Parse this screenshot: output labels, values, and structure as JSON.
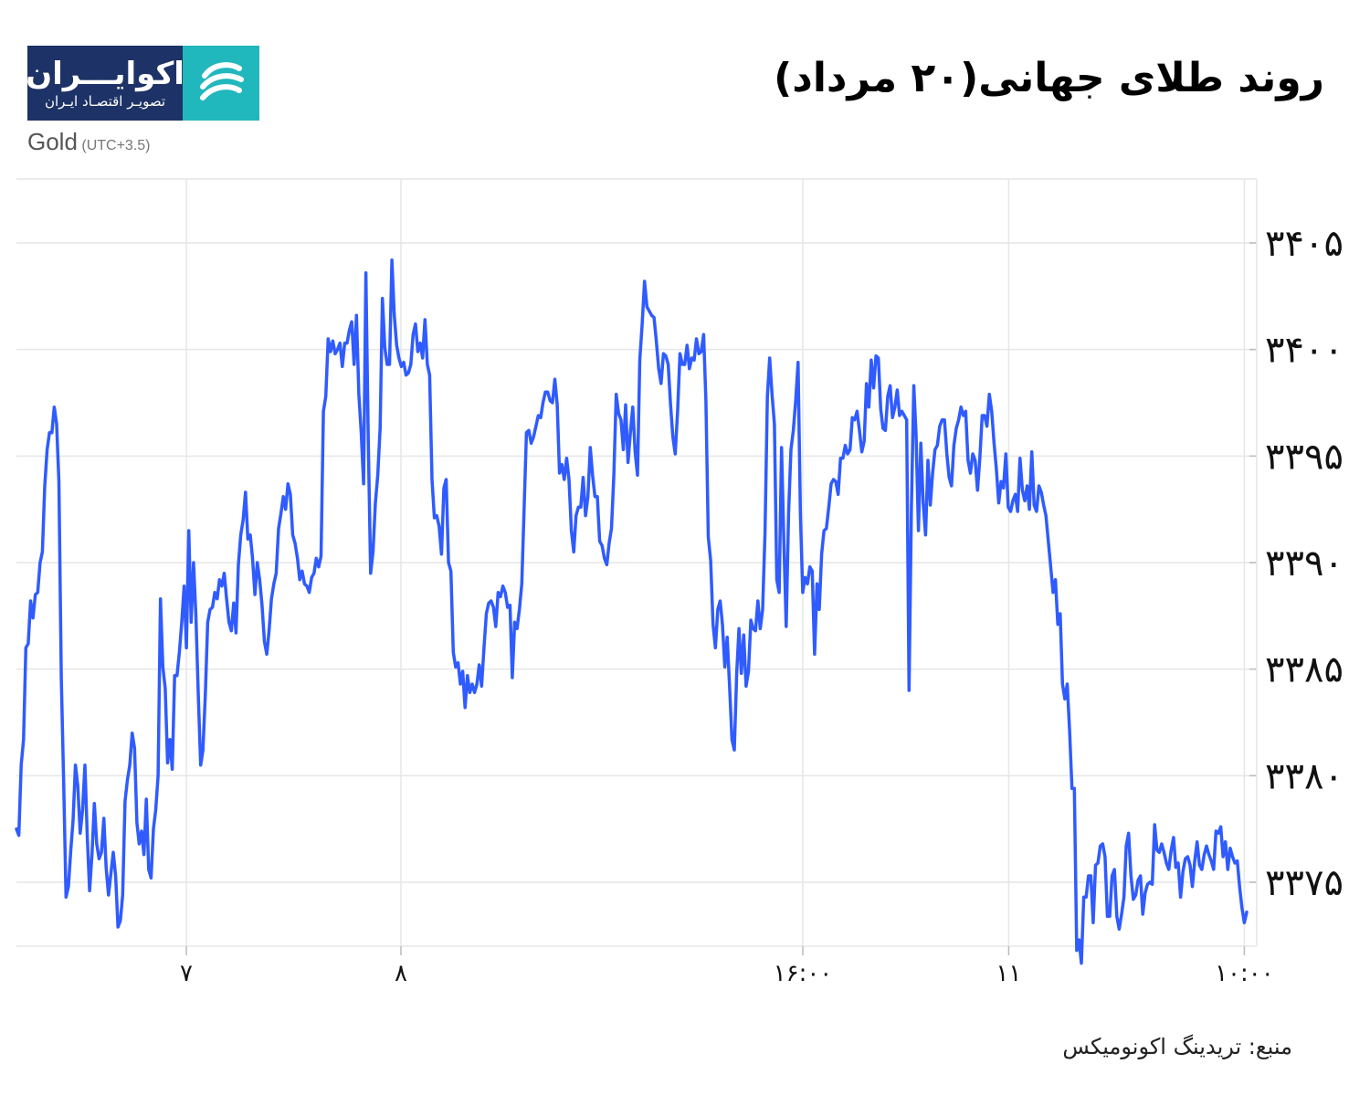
{
  "header": {
    "title": "روند طلای جهانی(۲۰ مرداد)",
    "symbol": "Gold",
    "timezone": "(UTC+3.5)"
  },
  "logo": {
    "name": "اکوایـــران",
    "tagline": "تصویـر اقتصـاد ایـران",
    "colors": {
      "navy": "#1d3266",
      "teal": "#20b7bd"
    }
  },
  "footer": {
    "source": "منبع: تریدینگ اکونومیکس"
  },
  "colors": {
    "line": "#2f5bff",
    "grid": "#e6e6e6"
  },
  "chart_data": {
    "type": "line",
    "series": [
      {
        "values": [
          3377.5,
          3377.2,
          3380.5,
          3381.7,
          3386,
          3386.2,
          3388.2,
          3387.4,
          3388.5,
          3388.6,
          3390,
          3390.5,
          3393.6,
          3395.3,
          3396.1,
          3396.1,
          3397.3,
          3396.5,
          3393.8,
          3384.6,
          3379.7,
          3374.3,
          3374.8,
          3376.5,
          3377.9,
          3380.5,
          3379.5,
          3377.3,
          3378.4,
          3380.5,
          3377.1,
          3374.6,
          3376.3,
          3378.7,
          3376.8,
          3376.1,
          3376.4,
          3378,
          3375.7,
          3374.4,
          3375.4,
          3376.4,
          3375.3,
          3372.9,
          3373.2,
          3374.4,
          3378.8,
          3379.8,
          3380.5,
          3382,
          3381.3,
          3377.8,
          3376.8,
          3377.4,
          3376.3,
          3378.9,
          3375.6,
          3375.2,
          3377.5,
          3378.4,
          3380,
          3388.3,
          3385.1,
          3384.1,
          3380.6,
          3381.7,
          3380.3,
          3384.7,
          3384.7,
          3385.8,
          3387.2,
          3388.9,
          3386,
          3391.5,
          3387.2,
          3390,
          3387.5,
          3383.8,
          3380.5,
          3381.2,
          3383.8,
          3387.2,
          3387.8,
          3387.9,
          3388.6,
          3388.3,
          3389.2,
          3388.9,
          3389.5,
          3388.3,
          3387.2,
          3386.8,
          3388.1,
          3386.7,
          3389.9,
          3391.3,
          3392,
          3393.3,
          3391.1,
          3391.3,
          3390.2,
          3388.5,
          3390,
          3389.2,
          3388,
          3386.3,
          3385.7,
          3386.8,
          3388.3,
          3389,
          3389.5,
          3391.6,
          3392.3,
          3393.1,
          3392.5,
          3393.7,
          3393.2,
          3391.3,
          3390.9,
          3390.2,
          3389.2,
          3389.6,
          3389,
          3388.9,
          3388.6,
          3389.3,
          3389.5,
          3390.2,
          3389.8,
          3390.3,
          3397.1,
          3397.8,
          3400.5,
          3399.9,
          3400.4,
          3399.8,
          3400,
          3400.3,
          3399.2,
          3400.3,
          3400.3,
          3400.9,
          3401.3,
          3399.3,
          3401.6,
          3397.9,
          3396.1,
          3393.7,
          3403.6,
          3395.8,
          3389.5,
          3390.5,
          3392.8,
          3394.1,
          3396.3,
          3402.4,
          3400.1,
          3399.3,
          3399.3,
          3404.2,
          3401.6,
          3400.2,
          3399.6,
          3399.2,
          3399.4,
          3398.8,
          3398.9,
          3399.3,
          3400.7,
          3401.2,
          3399.9,
          3400.3,
          3399.6,
          3401.4,
          3399.3,
          3398.8,
          3393.9,
          3392.1,
          3392.2,
          3391.7,
          3390.4,
          3393.5,
          3393.9,
          3390,
          3389.6,
          3385.8,
          3385.1,
          3385.3,
          3384.3,
          3384.9,
          3383.2,
          3384.7,
          3383.9,
          3384.3,
          3383.9,
          3384.3,
          3385.2,
          3384.2,
          3386,
          3387.6,
          3388.1,
          3388.2,
          3387.9,
          3387,
          3388.6,
          3388.4,
          3388.9,
          3388.6,
          3387.9,
          3388,
          3384.6,
          3387.2,
          3386.9,
          3387.8,
          3389,
          3392.6,
          3396.1,
          3396.2,
          3395.6,
          3395.9,
          3396.4,
          3396.9,
          3396.8,
          3397.5,
          3398,
          3398,
          3397.6,
          3397.5,
          3398.6,
          3397.4,
          3394.2,
          3394.6,
          3393.9,
          3394.9,
          3393.9,
          3391.5,
          3390.5,
          3392.2,
          3392.6,
          3392.6,
          3394,
          3392.2,
          3393.1,
          3395.4,
          3394.1,
          3393.1,
          3393.1,
          3391,
          3390.8,
          3390.2,
          3389.9,
          3390.9,
          3391.6,
          3394.1,
          3397.9,
          3397,
          3396.7,
          3395.3,
          3397.4,
          3394.7,
          3396.1,
          3397.3,
          3395.2,
          3394.1,
          3399.5,
          3401.2,
          3403.2,
          3402,
          3401.8,
          3401.6,
          3401.5,
          3400.4,
          3399.1,
          3398.4,
          3399.8,
          3399.7,
          3399.3,
          3397.4,
          3395.9,
          3395.1,
          3397.1,
          3399.8,
          3399.3,
          3399.3,
          3400.2,
          3399.1,
          3399.6,
          3399.5,
          3400.5,
          3399.8,
          3399.9,
          3400.7,
          3397.6,
          3391.2,
          3390.1,
          3387.1,
          3386,
          3387.8,
          3388.2,
          3387.1,
          3385.1,
          3386.5,
          3384.2,
          3381.7,
          3381.2,
          3384.8,
          3386.9,
          3384.8,
          3386.6,
          3384.2,
          3384.9,
          3387.3,
          3386.9,
          3386.8,
          3388.2,
          3386.9,
          3387.8,
          3391.4,
          3397.8,
          3399.6,
          3397.9,
          3396.5,
          3389.2,
          3388.6,
          3395.4,
          3390.9,
          3387,
          3392.3,
          3395.3,
          3396.2,
          3397.6,
          3399.4,
          3392.2,
          3388.6,
          3389.3,
          3389,
          3389.8,
          3389.6,
          3385.7,
          3389,
          3387.8,
          3390.4,
          3391.5,
          3391.6,
          3392.6,
          3393.7,
          3393.9,
          3393.8,
          3393.2,
          3394.9,
          3394.9,
          3395.5,
          3395.1,
          3395.3,
          3396.8,
          3396.7,
          3397.1,
          3396.2,
          3395.2,
          3395.7,
          3398.4,
          3397.3,
          3399.5,
          3398.2,
          3399.7,
          3399.6,
          3397.2,
          3396.3,
          3396.2,
          3397.8,
          3398.3,
          3396.8,
          3397.3,
          3398.1,
          3396.9,
          3397.1,
          3396.9,
          3396.7,
          3384,
          3392.6,
          3398.3,
          3396,
          3391.5,
          3395.6,
          3392.8,
          3391.3,
          3394.8,
          3392.7,
          3394.2,
          3395.3,
          3395.5,
          3396.4,
          3396.7,
          3396.7,
          3395.1,
          3394,
          3393.6,
          3395.5,
          3396.3,
          3396.7,
          3397.3,
          3396.9,
          3397.1,
          3394.8,
          3394.2,
          3395.1,
          3394.8,
          3393.4,
          3394.9,
          3396.9,
          3396.9,
          3396.4,
          3397.9,
          3397.1,
          3395.6,
          3394.4,
          3392.8,
          3393.8,
          3393.5,
          3395.1,
          3392.6,
          3392.4,
          3392.9,
          3393.2,
          3392.4,
          3394.9,
          3393.4,
          3392.9,
          3393.6,
          3392.5,
          3395.2,
          3392.7,
          3392.4,
          3393.6,
          3393.3,
          3392.7,
          3392.2,
          3391,
          3389.8,
          3388.6,
          3389.2,
          3387.1,
          3387.6,
          3384.3,
          3383.6,
          3384.3,
          3382.1,
          3379.4,
          3379.4,
          3371.8,
          3372.3,
          3371.2,
          3374.3,
          3374.3,
          3375.3,
          3375.3,
          3373.1,
          3375.8,
          3375.9,
          3376.7,
          3376.8,
          3376.2,
          3373.4,
          3373.4,
          3375.3,
          3375.6,
          3373.4,
          3372.8,
          3373.5,
          3374.3,
          3376.7,
          3377.3,
          3375.3,
          3374.2,
          3374.4,
          3375.1,
          3375.3,
          3373.5,
          3374.5,
          3374.9,
          3375,
          3374.9,
          3377.7,
          3376.5,
          3376.4,
          3376.8,
          3376.4,
          3375.9,
          3375.6,
          3376.5,
          3377.1,
          3375.7,
          3375.9,
          3374.3,
          3375.5,
          3376.1,
          3376.2,
          3375.8,
          3374.8,
          3376,
          3376.9,
          3375.8,
          3375.6,
          3376.3,
          3376.7,
          3376.3,
          3376,
          3375.6,
          3377.4,
          3377.3,
          3377.6,
          3376.2,
          3376.9,
          3375.6,
          3376.6,
          3376.2,
          3375.9,
          3376,
          3374.8,
          3373.8,
          3373.1,
          3373.6
        ]
      }
    ],
    "x_ticks": [
      "۷",
      "۸",
      "۱۶:۰۰",
      "۱۱",
      "۱۰:۰۰"
    ],
    "y_ticks": [
      "۳۳۷۵",
      "۳۳۸۰",
      "۳۳۸۵",
      "۳۳۹۰",
      "۳۳۹۵",
      "۳۴۰۰",
      "۳۴۰۵"
    ],
    "y_tick_values": [
      3375,
      3380,
      3385,
      3390,
      3395,
      3400,
      3405
    ],
    "x_tick_fraction": [
      0.137,
      0.31,
      0.634,
      0.8,
      0.99
    ],
    "ylim": [
      3372,
      3408
    ],
    "grid": true
  }
}
